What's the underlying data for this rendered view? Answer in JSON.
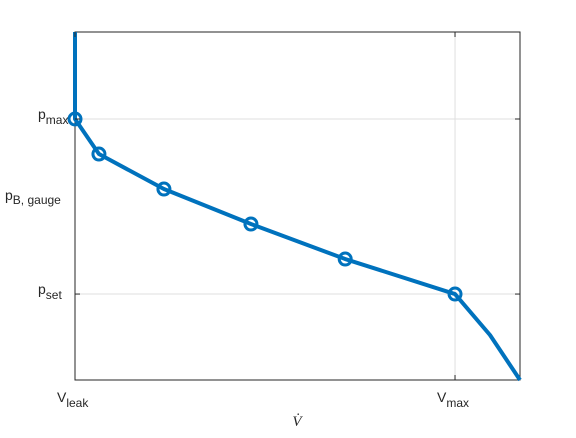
{
  "chart_data": {
    "type": "line",
    "xlabel": "V̇",
    "ylabel": [
      "p",
      "B, gauge"
    ],
    "xlim": [
      0,
      1.171
    ],
    "ylim": [
      0.509,
      2.497
    ],
    "xticks": [
      {
        "value": 0,
        "label": [
          "V",
          "leak"
        ]
      },
      {
        "value": 1,
        "label": [
          "V",
          "max"
        ]
      }
    ],
    "yticks": [
      {
        "value": 1,
        "label": [
          "p",
          "set"
        ]
      },
      {
        "value": 2,
        "label": [
          "p",
          "max"
        ]
      }
    ],
    "grid": true,
    "series": [
      {
        "color": "#0072bd",
        "marker": false,
        "x": [
          0,
          0,
          0.063,
          0.234,
          0.463,
          0.711,
          1,
          1.092,
          1.171
        ],
        "values": [
          2.497,
          2,
          1.8,
          1.6,
          1.4,
          1.2,
          1,
          0.766,
          0.509
        ]
      },
      {
        "color": "#0072bd",
        "marker": true,
        "x": [
          0,
          0.063,
          0.234,
          0.463,
          0.711,
          1
        ],
        "values": [
          2,
          1.8,
          1.6,
          1.4,
          1.2,
          1
        ]
      }
    ]
  }
}
